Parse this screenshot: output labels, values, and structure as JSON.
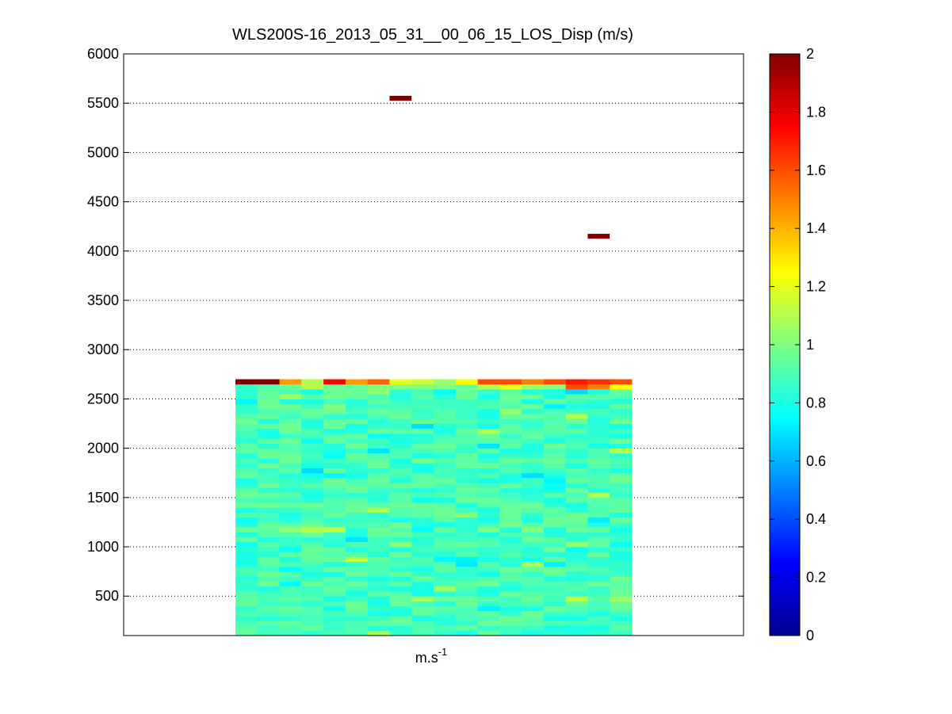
{
  "chart_data": {
    "type": "heatmap",
    "title": "WLS200S-16_2013_05_31__00_06_15_LOS_Disp (m/s)",
    "xlabel": "m.s",
    "xlabel_superscript": "-1",
    "ylabel": "",
    "ylim": [
      100,
      6000
    ],
    "yticks": [
      500,
      1000,
      1500,
      2000,
      2500,
      3000,
      3500,
      4000,
      4500,
      5000,
      5500,
      6000
    ],
    "y_grid": true,
    "y_grid_style": "dotted",
    "x_ticks": [],
    "colormap": "jet",
    "colorbar": {
      "range": [
        0,
        2
      ],
      "ticks": [
        0,
        0.2,
        0.4,
        0.6,
        0.8,
        1,
        1.2,
        1.4,
        1.6,
        1.8,
        2
      ],
      "tick_labels": [
        "0",
        "0.2",
        "0.4",
        "0.6",
        "0.8",
        "1",
        "1.2",
        "1.4",
        "1.6",
        "1.8",
        "2"
      ],
      "position": "right"
    },
    "range_gate_spacing_m": 50,
    "gate_range": [
      100,
      2700
    ],
    "columns": 18,
    "grid_fill_value": 0.88,
    "isolated_cells": [
      {
        "column": 7,
        "range_m": 5550,
        "value": 2.0
      },
      {
        "column": 16,
        "range_m": 4150,
        "value": 2.0
      }
    ],
    "top_gate_values": [
      2.0,
      2.0,
      1.45,
      1.1,
      1.75,
      1.45,
      1.55,
      1.2,
      1.15,
      1.05,
      1.25,
      1.6,
      1.6,
      1.5,
      1.6,
      1.7,
      1.65,
      1.6
    ],
    "second_gate_values": [
      0.85,
      0.9,
      0.95,
      1.1,
      0.95,
      0.95,
      1.0,
      1.0,
      1.0,
      1.0,
      0.95,
      1.1,
      1.2,
      1.05,
      1.0,
      1.6,
      1.5,
      1.25
    ]
  }
}
